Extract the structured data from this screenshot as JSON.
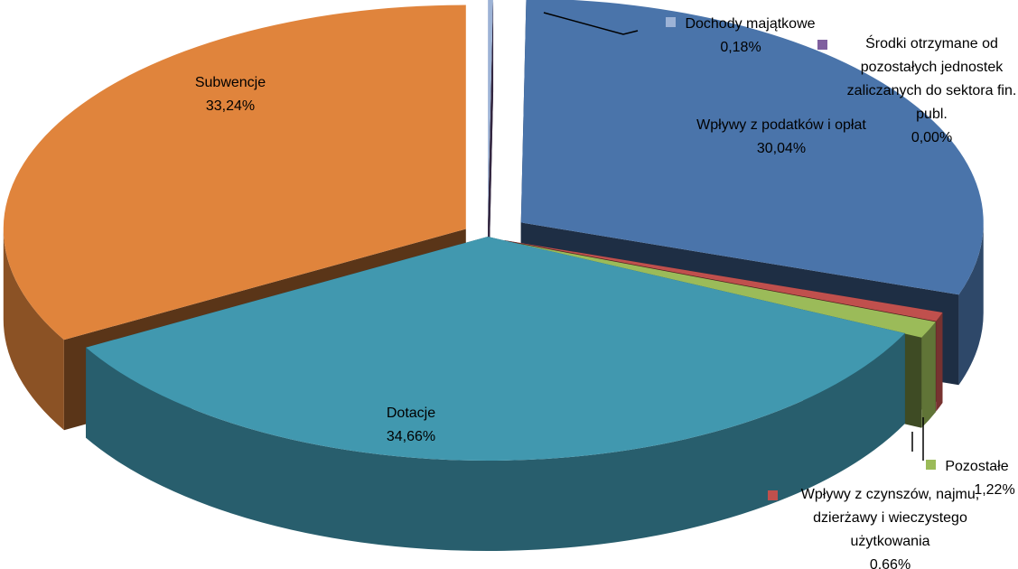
{
  "chart_data": {
    "type": "pie",
    "categories": [
      "Dochody majątkowe",
      "Środki otrzymane od pozostałych jednostek zaliczanych do sektora fin. publ.",
      "Wpływy z podatków i opłat",
      "Wpływy z czynszów, najmu, dzierżawy i wieczystego użytkowania",
      "Pozostałe",
      "Dotacje",
      "Subwencje"
    ],
    "values": [
      0.18,
      0,
      30.04,
      0.66,
      1.22,
      34.66,
      33.24
    ],
    "value_labels": [
      "0,18%",
      "0,00%",
      "30,04%",
      "0.66%",
      "1,22%",
      "34,66%",
      "33,24%"
    ],
    "colors": [
      "#9db3d6",
      "#7f5f9f",
      "#4a74aa",
      "#c0504d",
      "#9bbb59",
      "#4198af",
      "#e0843c"
    ]
  }
}
